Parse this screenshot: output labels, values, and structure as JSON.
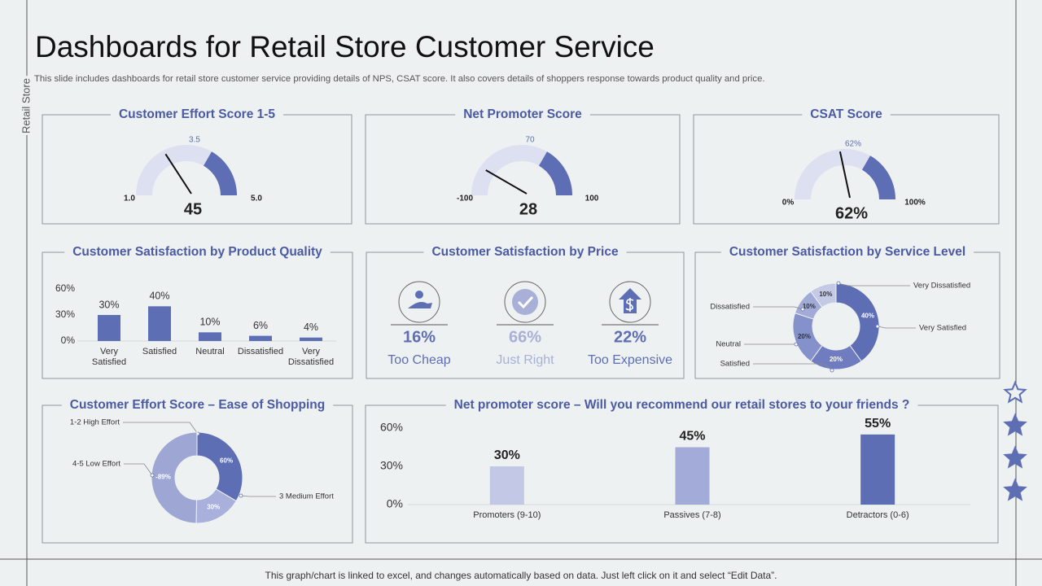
{
  "side_label": "Retail Store",
  "title": "Dashboards for Retail Store Customer Service",
  "subtitle": "This slide includes dashboards for retail store customer service providing details of NPS, CSAT score. It also covers details of shoppers response towards product quality and price.",
  "footer": "This graph/chart is linked to excel, and changes automatically based on data. Just left click on it and select “Edit Data”.",
  "chart_data": [
    {
      "type": "gauge",
      "title": "Customer Effort Score 1-5",
      "min": {
        "value": 1,
        "label": "1.0"
      },
      "max": {
        "value": 5,
        "label": "5.0"
      },
      "marker": 3.5,
      "value": 45,
      "color": "#5e6eb5"
    },
    {
      "type": "gauge",
      "title": "Net Promoter Score",
      "min": -100,
      "max": 100,
      "marker": 70,
      "value": 28,
      "color": "#5e6eb5"
    },
    {
      "type": "gauge",
      "title": "CSAT Score",
      "min": {
        "value": 0,
        "label": "0%"
      },
      "max": {
        "value": 100,
        "label": "100%"
      },
      "marker": {
        "value": 62,
        "label": "62%"
      },
      "value": 62,
      "value_label": "62%",
      "color": "#5e6eb5"
    },
    {
      "type": "bar",
      "title": "Customer Satisfaction by Product Quality",
      "categories": [
        "Very Satisfied",
        "Satisfied",
        "Neutral",
        "Dissatisfied",
        "Very Dissatisfied"
      ],
      "values": [
        30,
        40,
        10,
        6,
        4
      ],
      "value_labels": [
        "30%",
        "40%",
        "10%",
        "6%",
        "4%"
      ],
      "color": "#5e6eb5",
      "ylim": [
        0,
        60
      ],
      "yticks": [
        {
          "value": 0,
          "label": "0%"
        },
        {
          "value": 30,
          "label": "30%"
        },
        {
          "value": 60,
          "label": "60%"
        }
      ],
      "grid": false
    },
    {
      "type": "kpi",
      "title": "Customer Satisfaction by Price",
      "categories": [
        "Too Cheap",
        "Just Right",
        "Too Expensive"
      ],
      "values": [
        16,
        66,
        22
      ],
      "value_labels": [
        "16%",
        "66%",
        "22%"
      ],
      "colors": [
        "#5e6eb5",
        "#a9b0d8",
        "#5e6eb5"
      ]
    },
    {
      "type": "donut",
      "title": "Customer Satisfaction by Service Level",
      "categories": [
        "Very Satisfied",
        "Satisfied",
        "Neutral",
        "Dissatisfied",
        "Very Dissatisfied"
      ],
      "values": [
        40,
        20,
        20,
        10,
        10
      ],
      "value_labels": [
        "40%",
        "20%",
        "20%",
        "10%",
        "10%"
      ],
      "colors": [
        "#5e6eb5",
        "#6f7dc0",
        "#8591ca",
        "#a2aad7",
        "#c4c9e6"
      ]
    },
    {
      "type": "donut",
      "title": "Customer Effort Score – Ease of Shopping",
      "categories": [
        "1-2 High Effort",
        "3 Medium Effort",
        "4-5 Low Effort"
      ],
      "values": [
        60,
        30,
        -89
      ],
      "value_labels": [
        "60%",
        "30%",
        "-89%"
      ],
      "colors": [
        "#5e6eb5",
        "#a9b0db",
        "#9ea6d4"
      ]
    },
    {
      "type": "bar",
      "title": "Net promoter score – Will you recommend our retail stores to your friends ?",
      "categories": [
        "Promoters (9-10)",
        "Passives (7-8)",
        "Detractors (0-6)"
      ],
      "values": [
        30,
        45,
        55
      ],
      "value_labels": [
        "30%",
        "45%",
        "55%"
      ],
      "colors": [
        "#c3c8e6",
        "#a3abd8",
        "#5e6eb5"
      ],
      "ylim": [
        0,
        60
      ],
      "yticks": [
        {
          "value": 0,
          "label": "0%"
        },
        {
          "value": 30,
          "label": "30%"
        },
        {
          "value": 60,
          "label": "60%"
        }
      ],
      "grid": false
    }
  ]
}
